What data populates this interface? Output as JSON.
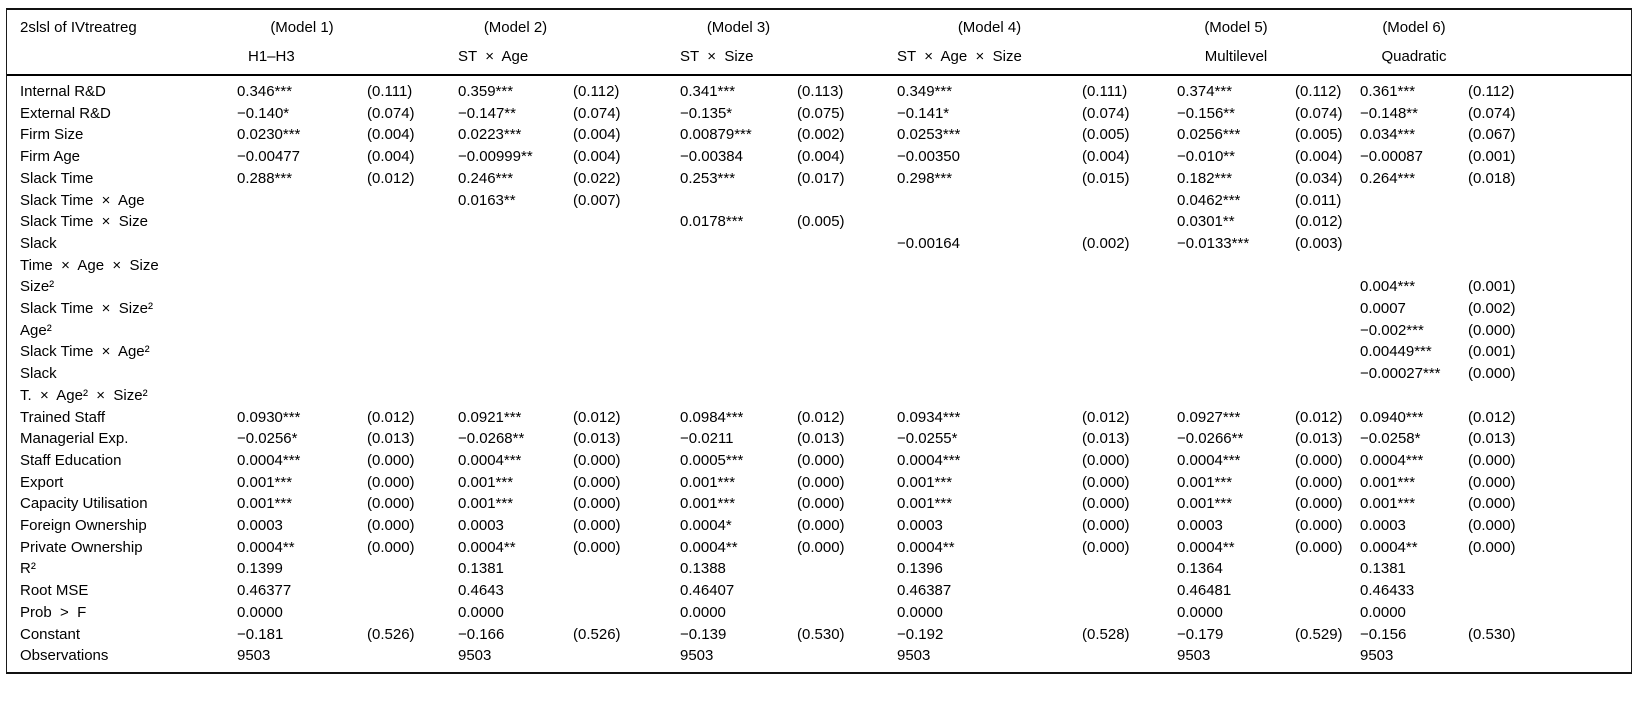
{
  "table": {
    "corner_label": "2slsl of IVtreatreg",
    "models": [
      {
        "title": "(Model 1)",
        "subtitle": "H1–H3"
      },
      {
        "title": "(Model 2)",
        "subtitle": "ST  ×  Age"
      },
      {
        "title": "(Model 3)",
        "subtitle": "ST  ×  Size"
      },
      {
        "title": "(Model 4)",
        "subtitle": "ST  ×  Age  ×  Size"
      },
      {
        "title": "(Model 5)",
        "subtitle": "Multilevel"
      },
      {
        "title": "(Model 6)",
        "subtitle": "Quadratic"
      }
    ],
    "rows": [
      {
        "label": "Internal R&D",
        "cells": [
          "0.346***",
          "(0.111)",
          "0.359***",
          "(0.112)",
          "0.341***",
          "(0.113)",
          "0.349***",
          "(0.111)",
          "0.374***",
          "(0.112)",
          "0.361***",
          "(0.112)"
        ]
      },
      {
        "label": "External R&D",
        "cells": [
          "−0.140*",
          "(0.074)",
          "−0.147**",
          "(0.074)",
          "−0.135*",
          "(0.075)",
          "−0.141*",
          "(0.074)",
          "−0.156**",
          "(0.074)",
          "−0.148**",
          "(0.074)"
        ]
      },
      {
        "label": "Firm Size",
        "cells": [
          "0.0230***",
          "(0.004)",
          "0.0223***",
          "(0.004)",
          "0.00879***",
          "(0.002)",
          "0.0253***",
          "(0.005)",
          "0.0256***",
          "(0.005)",
          "0.034***",
          "(0.067)"
        ]
      },
      {
        "label": "Firm Age",
        "cells": [
          "−0.00477",
          "(0.004)",
          "−0.00999**",
          "(0.004)",
          "−0.00384",
          "(0.004)",
          "−0.00350",
          "(0.004)",
          "−0.010**",
          "(0.004)",
          "−0.00087",
          "(0.001)"
        ]
      },
      {
        "label": "Slack Time",
        "cells": [
          "0.288***",
          "(0.012)",
          "0.246***",
          "(0.022)",
          "0.253***",
          "(0.017)",
          "0.298***",
          "(0.015)",
          "0.182***",
          "(0.034)",
          "0.264***",
          "(0.018)"
        ]
      },
      {
        "label": "Slack Time  ×  Age",
        "cells": [
          "",
          "",
          "0.0163**",
          "(0.007)",
          "",
          "",
          "",
          "",
          "0.0462***",
          "(0.011)",
          "",
          ""
        ]
      },
      {
        "label": "Slack Time  ×  Size",
        "cells": [
          "",
          "",
          "",
          "",
          "0.0178***",
          "(0.005)",
          "",
          "",
          "0.0301**",
          "(0.012)",
          "",
          ""
        ]
      },
      {
        "label": "Slack\nTime  ×  Age  ×  Size",
        "cells": [
          "",
          "",
          "",
          "",
          "",
          "",
          "−0.00164",
          "(0.002)",
          "−0.0133***",
          "(0.003)",
          "",
          ""
        ]
      },
      {
        "label": "Size²",
        "cells": [
          "",
          "",
          "",
          "",
          "",
          "",
          "",
          "",
          "",
          "",
          "0.004***",
          "(0.001)"
        ]
      },
      {
        "label": "Slack Time  ×  Size²",
        "cells": [
          "",
          "",
          "",
          "",
          "",
          "",
          "",
          "",
          "",
          "",
          "0.0007",
          "(0.002)"
        ]
      },
      {
        "label": "Age²",
        "cells": [
          "",
          "",
          "",
          "",
          "",
          "",
          "",
          "",
          "",
          "",
          "−0.002***",
          "(0.000)"
        ]
      },
      {
        "label": "Slack Time  ×  Age²",
        "cells": [
          "",
          "",
          "",
          "",
          "",
          "",
          "",
          "",
          "",
          "",
          "0.00449***",
          "(0.001)"
        ]
      },
      {
        "label": "Slack\nT.  ×  Age²  ×  Size²",
        "cells": [
          "",
          "",
          "",
          "",
          "",
          "",
          "",
          "",
          "",
          "",
          "−0.00027***",
          "(0.000)"
        ]
      },
      {
        "label": "Trained Staff",
        "cells": [
          "0.0930***",
          "(0.012)",
          "0.0921***",
          "(0.012)",
          "0.0984***",
          "(0.012)",
          "0.0934***",
          "(0.012)",
          "0.0927***",
          "(0.012)",
          "0.0940***",
          "(0.012)"
        ]
      },
      {
        "label": "Managerial Exp.",
        "cells": [
          "−0.0256*",
          "(0.013)",
          "−0.0268**",
          "(0.013)",
          "−0.0211",
          "(0.013)",
          "−0.0255*",
          "(0.013)",
          "−0.0266**",
          "(0.013)",
          "−0.0258*",
          "(0.013)"
        ]
      },
      {
        "label": "Staff Education",
        "cells": [
          "0.0004***",
          "(0.000)",
          "0.0004***",
          "(0.000)",
          "0.0005***",
          "(0.000)",
          "0.0004***",
          "(0.000)",
          "0.0004***",
          "(0.000)",
          "0.0004***",
          "(0.000)"
        ]
      },
      {
        "label": "Export",
        "cells": [
          "0.001***",
          "(0.000)",
          "0.001***",
          "(0.000)",
          "0.001***",
          "(0.000)",
          "0.001***",
          "(0.000)",
          "0.001***",
          "(0.000)",
          "0.001***",
          "(0.000)"
        ]
      },
      {
        "label": "Capacity Utilisation",
        "cells": [
          "0.001***",
          "(0.000)",
          "0.001***",
          "(0.000)",
          "0.001***",
          "(0.000)",
          "0.001***",
          "(0.000)",
          "0.001***",
          "(0.000)",
          "0.001***",
          "(0.000)"
        ]
      },
      {
        "label": "Foreign Ownership",
        "cells": [
          "0.0003",
          "(0.000)",
          "0.0003",
          "(0.000)",
          "0.0004*",
          "(0.000)",
          "0.0003",
          "(0.000)",
          "0.0003",
          "(0.000)",
          "0.0003",
          "(0.000)"
        ]
      },
      {
        "label": "Private Ownership",
        "cells": [
          "0.0004**",
          "(0.000)",
          "0.0004**",
          "(0.000)",
          "0.0004**",
          "(0.000)",
          "0.0004**",
          "(0.000)",
          "0.0004**",
          "(0.000)",
          "0.0004**",
          "(0.000)"
        ]
      },
      {
        "label": "R²",
        "cells": [
          "0.1399",
          "",
          "0.1381",
          "",
          "0.1388",
          "",
          "0.1396",
          "",
          "0.1364",
          "",
          "0.1381",
          ""
        ]
      },
      {
        "label": "Root MSE",
        "cells": [
          "0.46377",
          "",
          "0.4643",
          "",
          "0.46407",
          "",
          "0.46387",
          "",
          "0.46481",
          "",
          "0.46433",
          ""
        ]
      },
      {
        "label": "Prob  >  F",
        "cells": [
          "0.0000",
          "",
          "0.0000",
          "",
          "0.0000",
          "",
          "0.0000",
          "",
          "0.0000",
          "",
          "0.0000",
          ""
        ]
      },
      {
        "label": "Constant",
        "cells": [
          "−0.181",
          "(0.526)",
          "−0.166",
          "(0.526)",
          "−0.139",
          "(0.530)",
          "−0.192",
          "(0.528)",
          "−0.179",
          "(0.529)",
          "−0.156",
          "(0.530)"
        ]
      },
      {
        "label": "Observations",
        "cells": [
          "9503",
          "",
          "9503",
          "",
          "9503",
          "",
          "9503",
          "",
          "9503",
          "",
          "9503",
          ""
        ]
      }
    ]
  }
}
